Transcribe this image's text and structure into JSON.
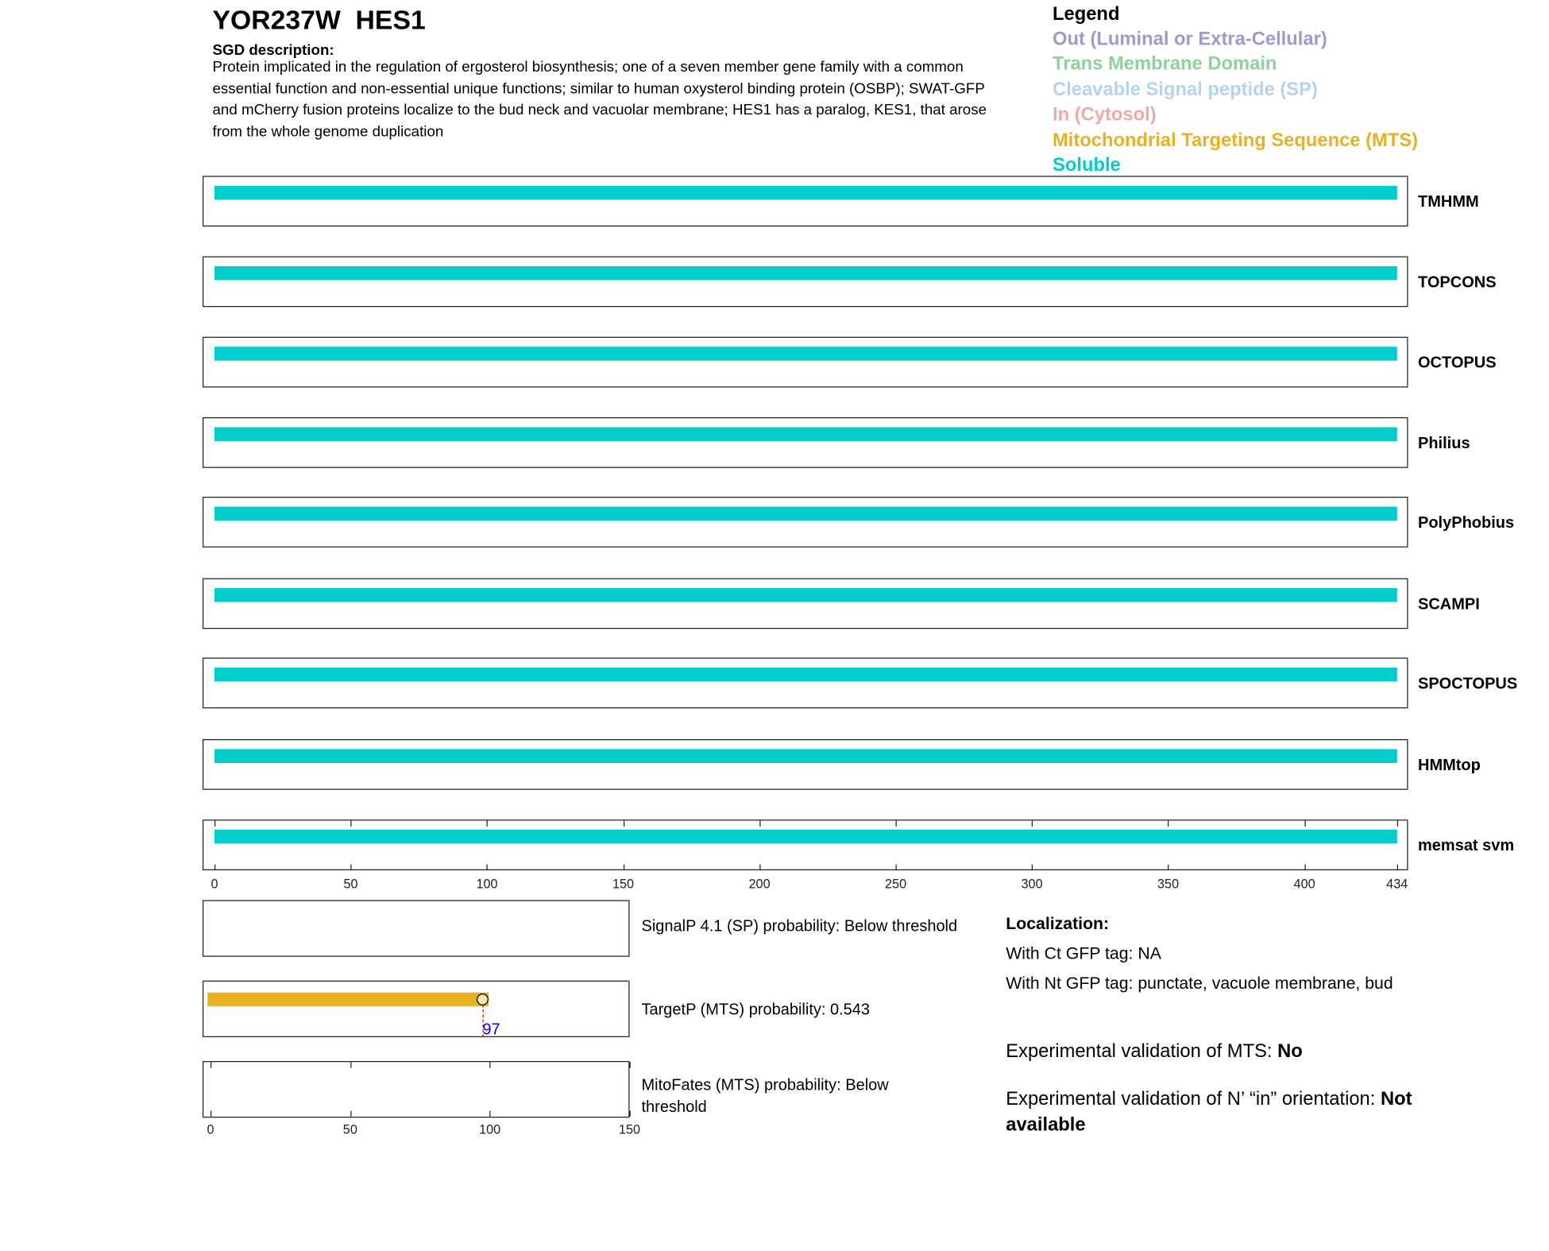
{
  "header": {
    "title": "YOR237W  HES1",
    "sgd_heading": "SGD description:",
    "sgd_text": "Protein implicated in the regulation of ergosterol biosynthesis; one of a seven member gene family with a common essential function and non-essential unique functions; similar to human oxysterol binding protein (OSBP); SWAT-GFP and mCherry fusion proteins localize to the bud neck and vacuolar membrane; HES1 has a paralog, KES1, that arose from the whole genome duplication"
  },
  "legend": {
    "title": "Legend",
    "items": [
      {
        "label": "Out (Luminal or Extra-Cellular)",
        "color": "#9b9bcf"
      },
      {
        "label": "Trans Membrane Domain",
        "color": "#8fd19e"
      },
      {
        "label": "Cleavable Signal peptide (SP)",
        "color": "#b5d3f0"
      },
      {
        "label": "In (Cytosol)",
        "color": "#f0a8a8"
      },
      {
        "label": "Mitochondrial Targeting Sequence (MTS)",
        "color": "#e9b021"
      },
      {
        "label": "Soluble",
        "color": "#00cccc"
      }
    ]
  },
  "chart_data": [
    {
      "type": "bar",
      "description_type": "topology tracks",
      "xlim": [
        0,
        434
      ],
      "xticks": [
        0,
        50,
        100,
        150,
        200,
        250,
        300,
        350,
        400,
        434
      ],
      "tracks": [
        {
          "name": "TMHMM",
          "segments": [
            {
              "start": 1,
              "end": 434,
              "class": "Soluble"
            }
          ]
        },
        {
          "name": "TOPCONS",
          "segments": [
            {
              "start": 1,
              "end": 434,
              "class": "Soluble"
            }
          ]
        },
        {
          "name": "OCTOPUS",
          "segments": [
            {
              "start": 1,
              "end": 434,
              "class": "Soluble"
            }
          ]
        },
        {
          "name": "Philius",
          "segments": [
            {
              "start": 1,
              "end": 434,
              "class": "Soluble"
            }
          ]
        },
        {
          "name": "PolyPhobius",
          "segments": [
            {
              "start": 1,
              "end": 434,
              "class": "Soluble"
            }
          ]
        },
        {
          "name": "SCAMPI",
          "segments": [
            {
              "start": 1,
              "end": 434,
              "class": "Soluble"
            }
          ]
        },
        {
          "name": "SPOCTOPUS",
          "segments": [
            {
              "start": 1,
              "end": 434,
              "class": "Soluble"
            }
          ]
        },
        {
          "name": "HMMtop",
          "segments": [
            {
              "start": 1,
              "end": 434,
              "class": "Soluble"
            }
          ]
        },
        {
          "name": "memsat svm",
          "segments": [
            {
              "start": 1,
              "end": 434,
              "class": "Soluble"
            }
          ]
        }
      ]
    },
    {
      "type": "bar",
      "xlim": [
        0,
        150
      ],
      "xticks": [
        0,
        50,
        100,
        150
      ],
      "panels": [
        {
          "label": "SignalP 4.1 (SP) probability: Below threshold",
          "segments": []
        },
        {
          "label": "TargetP (MTS) probability: 0.543",
          "segments": [
            {
              "start": 1,
              "end": 99,
              "class": "Mitochondrial Targeting Sequence (MTS)"
            }
          ],
          "cleavage_site": 97,
          "cleavage_label": "97"
        },
        {
          "label": "MitoFates (MTS) probability: Below threshold",
          "segments": []
        }
      ]
    }
  ],
  "localization": {
    "heading": "Localization:",
    "ct": "With Ct GFP tag: NA",
    "nt": "With Nt GFP tag: punctate, vacuole membrane, bud"
  },
  "validation": {
    "mts_label": "Experimental validation of MTS: ",
    "mts_value": "No",
    "nin_label": "Experimental validation of N’ “in” orientation: ",
    "nin_value": "Not available"
  }
}
